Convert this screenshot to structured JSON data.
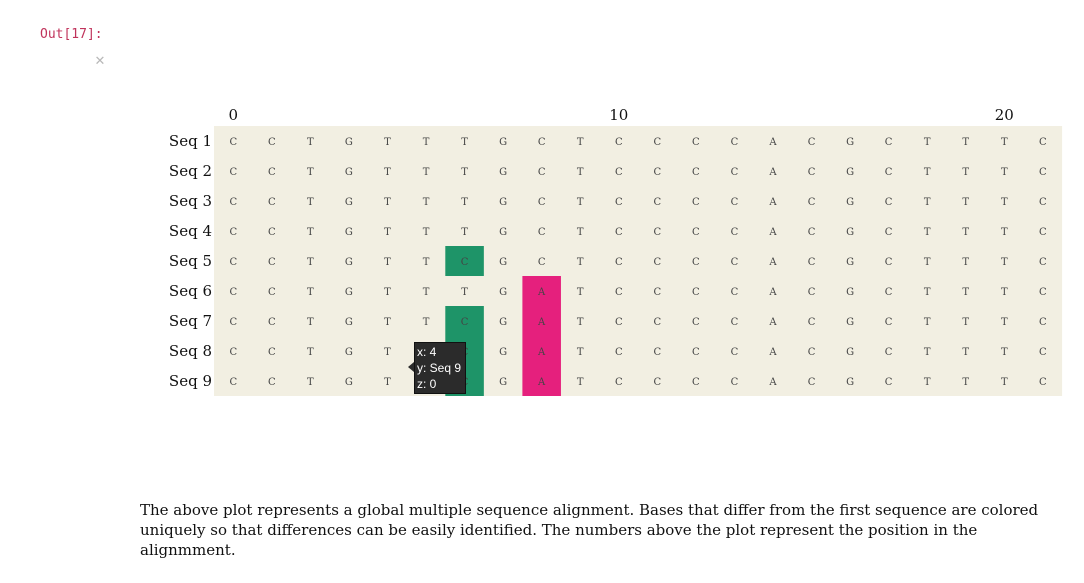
{
  "cell": {
    "prompt": "Out[17]:",
    "collapse_icon": "close-x-icon"
  },
  "chart_data": {
    "type": "heatmap",
    "title": "",
    "xlabel": "",
    "ylabel": "",
    "x_tick_labels": [
      "0",
      "10",
      "20"
    ],
    "x_tick_positions": [
      0,
      10,
      20
    ],
    "rows": [
      "Seq 1",
      "Seq 2",
      "Seq 3",
      "Seq 4",
      "Seq 5",
      "Seq 6",
      "Seq 7",
      "Seq 8",
      "Seq 9"
    ],
    "sequences": [
      [
        "C",
        "C",
        "T",
        "G",
        "T",
        "T",
        "T",
        "G",
        "C",
        "T",
        "C",
        "C",
        "C",
        "C",
        "A",
        "C",
        "G",
        "C",
        "T",
        "T",
        "T",
        "C"
      ],
      [
        "C",
        "C",
        "T",
        "G",
        "T",
        "T",
        "T",
        "G",
        "C",
        "T",
        "C",
        "C",
        "C",
        "C",
        "A",
        "C",
        "G",
        "C",
        "T",
        "T",
        "T",
        "C"
      ],
      [
        "C",
        "C",
        "T",
        "G",
        "T",
        "T",
        "T",
        "G",
        "C",
        "T",
        "C",
        "C",
        "C",
        "C",
        "A",
        "C",
        "G",
        "C",
        "T",
        "T",
        "T",
        "C"
      ],
      [
        "C",
        "C",
        "T",
        "G",
        "T",
        "T",
        "T",
        "G",
        "C",
        "T",
        "C",
        "C",
        "C",
        "C",
        "A",
        "C",
        "G",
        "C",
        "T",
        "T",
        "T",
        "C"
      ],
      [
        "C",
        "C",
        "T",
        "G",
        "T",
        "T",
        "C",
        "G",
        "C",
        "T",
        "C",
        "C",
        "C",
        "C",
        "A",
        "C",
        "G",
        "C",
        "T",
        "T",
        "T",
        "C"
      ],
      [
        "C",
        "C",
        "T",
        "G",
        "T",
        "T",
        "T",
        "G",
        "A",
        "T",
        "C",
        "C",
        "C",
        "C",
        "A",
        "C",
        "G",
        "C",
        "T",
        "T",
        "T",
        "C"
      ],
      [
        "C",
        "C",
        "T",
        "G",
        "T",
        "T",
        "C",
        "G",
        "A",
        "T",
        "C",
        "C",
        "C",
        "C",
        "A",
        "C",
        "G",
        "C",
        "T",
        "T",
        "T",
        "C"
      ],
      [
        "C",
        "C",
        "T",
        "G",
        "T",
        "T",
        "C",
        "G",
        "A",
        "T",
        "C",
        "C",
        "C",
        "C",
        "A",
        "C",
        "G",
        "C",
        "T",
        "T",
        "T",
        "C"
      ],
      [
        "C",
        "C",
        "T",
        "G",
        "T",
        "T",
        "C",
        "G",
        "A",
        "T",
        "C",
        "C",
        "C",
        "C",
        "A",
        "C",
        "G",
        "C",
        "T",
        "T",
        "T",
        "C"
      ]
    ],
    "colors": {
      "background": "#f2efe2",
      "C": "#1e9468",
      "A": "#e5207d"
    },
    "tooltip": {
      "x": "x: 4",
      "y": "y: Seq 9",
      "z": "z: 0"
    }
  },
  "caption": "The above plot represents a global multiple sequence alignment. Bases that differ from the first sequence are colored uniquely so that differences can be easily identified. The numbers above the plot represent the position in the alignmment."
}
